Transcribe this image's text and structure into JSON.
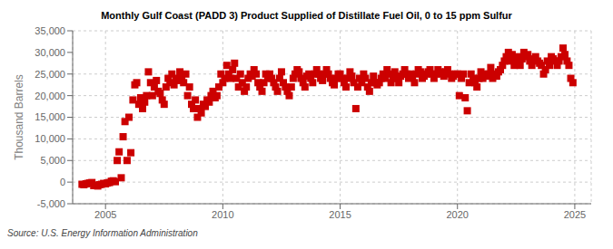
{
  "chart_data": {
    "type": "scatter",
    "title": "Monthly Gulf Coast (PADD 3) Product Supplied of Distillate Fuel Oil, 0 to 15 ppm Sulfur",
    "ylabel": "Thousand Barrels",
    "annotations": [
      "Source: U.S. Energy Information Administration"
    ],
    "color": "#cc0000",
    "marker": "square",
    "grid": true,
    "xlim": [
      2003.6,
      2025.7
    ],
    "xticks": [
      2005,
      2010,
      2015,
      2020,
      2025
    ],
    "ylim": [
      -5000,
      35000
    ],
    "yticks": [
      {
        "value": -5000,
        "label": "-5,000"
      },
      0,
      {
        "value": 5000,
        "label": "5,000"
      },
      {
        "value": 10000,
        "label": "10,000"
      },
      {
        "value": 15000,
        "label": "15,000"
      },
      {
        "value": 20000,
        "label": "20,000"
      },
      {
        "value": 25000,
        "label": "25,000"
      },
      {
        "value": 30000,
        "label": "30,000"
      },
      {
        "value": 35000,
        "label": "35,000"
      }
    ],
    "x": [
      2004.0,
      2004.08,
      2004.17,
      2004.25,
      2004.33,
      2004.42,
      2004.5,
      2004.58,
      2004.67,
      2004.75,
      2004.83,
      2004.92,
      2005.0,
      2005.08,
      2005.17,
      2005.25,
      2005.33,
      2005.42,
      2005.5,
      2005.58,
      2005.67,
      2005.75,
      2005.83,
      2005.92,
      2006.0,
      2006.08,
      2006.17,
      2006.25,
      2006.33,
      2006.42,
      2006.5,
      2006.58,
      2006.67,
      2006.75,
      2006.83,
      2006.92,
      2007.0,
      2007.08,
      2007.17,
      2007.25,
      2007.33,
      2007.42,
      2007.5,
      2007.58,
      2007.67,
      2007.75,
      2007.83,
      2007.92,
      2008.0,
      2008.08,
      2008.17,
      2008.25,
      2008.33,
      2008.42,
      2008.5,
      2008.58,
      2008.67,
      2008.75,
      2008.83,
      2008.92,
      2009.0,
      2009.08,
      2009.17,
      2009.25,
      2009.33,
      2009.42,
      2009.5,
      2009.58,
      2009.67,
      2009.75,
      2009.83,
      2009.92,
      2010.0,
      2010.08,
      2010.17,
      2010.25,
      2010.33,
      2010.42,
      2010.5,
      2010.58,
      2010.67,
      2010.75,
      2010.83,
      2010.92,
      2011.0,
      2011.08,
      2011.17,
      2011.25,
      2011.33,
      2011.42,
      2011.5,
      2011.58,
      2011.67,
      2011.75,
      2011.83,
      2011.92,
      2012.0,
      2012.08,
      2012.17,
      2012.25,
      2012.33,
      2012.42,
      2012.5,
      2012.58,
      2012.67,
      2012.75,
      2012.83,
      2012.92,
      2013.0,
      2013.08,
      2013.17,
      2013.25,
      2013.33,
      2013.42,
      2013.5,
      2013.58,
      2013.67,
      2013.75,
      2013.83,
      2013.92,
      2014.0,
      2014.08,
      2014.17,
      2014.25,
      2014.33,
      2014.42,
      2014.5,
      2014.58,
      2014.67,
      2014.75,
      2014.83,
      2014.92,
      2015.0,
      2015.08,
      2015.17,
      2015.25,
      2015.33,
      2015.42,
      2015.5,
      2015.58,
      2015.67,
      2015.75,
      2015.83,
      2015.92,
      2016.0,
      2016.08,
      2016.17,
      2016.25,
      2016.33,
      2016.42,
      2016.5,
      2016.58,
      2016.67,
      2016.75,
      2016.83,
      2016.92,
      2017.0,
      2017.08,
      2017.17,
      2017.25,
      2017.33,
      2017.42,
      2017.5,
      2017.58,
      2017.67,
      2017.75,
      2017.83,
      2017.92,
      2018.0,
      2018.08,
      2018.17,
      2018.25,
      2018.33,
      2018.42,
      2018.5,
      2018.58,
      2018.67,
      2018.75,
      2018.83,
      2018.92,
      2019.0,
      2019.08,
      2019.17,
      2019.25,
      2019.33,
      2019.42,
      2019.5,
      2019.58,
      2019.67,
      2019.75,
      2019.83,
      2019.92,
      2020.0,
      2020.08,
      2020.17,
      2020.25,
      2020.33,
      2020.42,
      2020.5,
      2020.58,
      2020.67,
      2020.75,
      2020.83,
      2020.92,
      2021.0,
      2021.08,
      2021.17,
      2021.25,
      2021.33,
      2021.42,
      2021.5,
      2021.58,
      2021.67,
      2021.75,
      2021.83,
      2021.92,
      2022.0,
      2022.08,
      2022.17,
      2022.25,
      2022.33,
      2022.42,
      2022.5,
      2022.58,
      2022.67,
      2022.75,
      2022.83,
      2022.92,
      2023.0,
      2023.08,
      2023.17,
      2023.25,
      2023.33,
      2023.42,
      2023.5,
      2023.58,
      2023.67,
      2023.75,
      2023.83,
      2023.92,
      2024.0,
      2024.08,
      2024.17,
      2024.25,
      2024.33,
      2024.42,
      2024.5,
      2024.58,
      2024.67,
      2024.75,
      2024.83,
      2024.92
    ],
    "values": [
      -500,
      -600,
      -400,
      -300,
      -200,
      -100,
      -800,
      -700,
      -900,
      -600,
      -500,
      -300,
      -400,
      -200,
      -100,
      200,
      300,
      100,
      5000,
      7000,
      1000,
      10500,
      14000,
      5000,
      15000,
      6800,
      19000,
      22500,
      23000,
      18000,
      19500,
      17000,
      18500,
      20000,
      25500,
      23000,
      20000,
      22000,
      23500,
      21000,
      20500,
      19000,
      18000,
      22000,
      24000,
      23000,
      25000,
      22500,
      24000,
      23500,
      25500,
      24000,
      23000,
      25000,
      20000,
      22000,
      18000,
      17000,
      19000,
      15000,
      17000,
      16000,
      18000,
      17500,
      19000,
      18500,
      20000,
      21000,
      19500,
      20000,
      22000,
      25000,
      23000,
      24000,
      27000,
      25000,
      24000,
      26000,
      27500,
      24000,
      22000,
      25000,
      23000,
      21000,
      22000,
      24000,
      25000,
      24500,
      26000,
      25000,
      23000,
      22000,
      21000,
      23000,
      25000,
      24000,
      25000,
      24000,
      23000,
      22000,
      21000,
      24000,
      25500,
      23000,
      22000,
      21000,
      20000,
      22000,
      24000,
      25000,
      26000,
      25500,
      24000,
      23000,
      22000,
      24500,
      25000,
      24000,
      23000,
      25000,
      26000,
      25000,
      24000,
      23500,
      25000,
      26000,
      25000,
      24000,
      23000,
      22500,
      24000,
      25000,
      25000,
      24000,
      23000,
      22000,
      24000,
      25500,
      24500,
      23000,
      17000,
      22000,
      24000,
      23000,
      25000,
      24000,
      22000,
      21000,
      23000,
      24500,
      23000,
      22500,
      23000,
      24000,
      25000,
      24000,
      26000,
      25000,
      23000,
      24000,
      25500,
      24000,
      23000,
      24500,
      25000,
      26000,
      25000,
      24000,
      25000,
      24500,
      23000,
      25000,
      26000,
      25500,
      24000,
      24500,
      25000,
      25500,
      26000,
      25000,
      24000,
      25000,
      26000,
      25500,
      25000,
      24500,
      25500,
      26000,
      25000,
      24000,
      24500,
      25000,
      25000,
      20000,
      24000,
      25000,
      19500,
      16500,
      23000,
      25000,
      24000,
      23000,
      22000,
      24000,
      25500,
      24000,
      25000,
      24500,
      25000,
      26500,
      24000,
      25000,
      24500,
      25500,
      26000,
      27000,
      28000,
      29000,
      30000,
      28000,
      29500,
      27000,
      28000,
      29000,
      27000,
      28500,
      30000,
      29000,
      29500,
      28000,
      27000,
      28500,
      29000,
      28000,
      27500,
      27000,
      25000,
      26000,
      28000,
      27000,
      29000,
      28500,
      28000,
      27000,
      28000,
      29000,
      31000,
      29500,
      28000,
      27000,
      24000,
      23000
    ]
  }
}
